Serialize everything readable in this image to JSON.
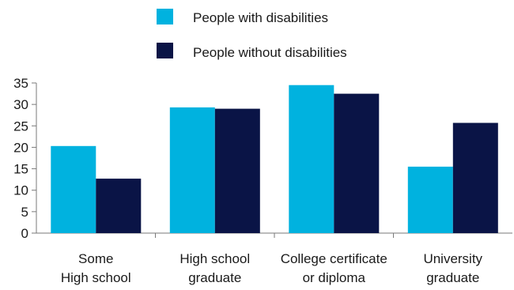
{
  "colors": {
    "with": "#00b2df",
    "without": "#0a1446",
    "axis": "#7a7a7a"
  },
  "chart_data": {
    "type": "bar",
    "categories": [
      [
        "Some",
        "High school"
      ],
      [
        "High school",
        "graduate"
      ],
      [
        "College certificate",
        "or diploma"
      ],
      [
        "University",
        "graduate"
      ]
    ],
    "series": [
      {
        "name": "People with disabilities",
        "values": [
          20.3,
          29.3,
          34.5,
          15.5
        ]
      },
      {
        "name": "People without disabilities",
        "values": [
          12.7,
          29.0,
          32.5,
          25.7
        ]
      }
    ],
    "yticks": [
      0,
      5,
      10,
      15,
      20,
      25,
      30,
      35
    ],
    "ylim": [
      0,
      35
    ],
    "grid": false,
    "legend_position": "top-center"
  }
}
